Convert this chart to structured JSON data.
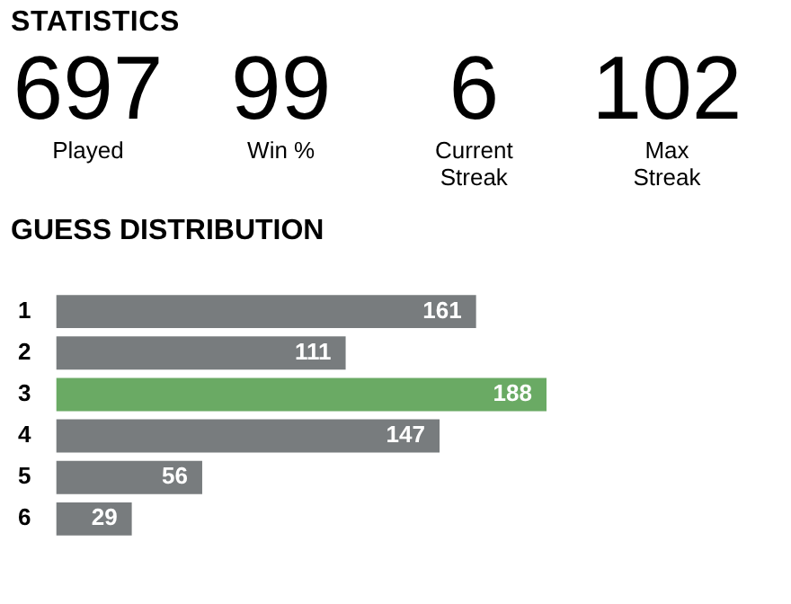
{
  "chart_data": [
    {
      "type": "other",
      "title": "STATISTICS",
      "annotations": [
        "697",
        "Played",
        "99",
        "Win %",
        "6",
        "Current Streak",
        "102",
        "Max Streak"
      ]
    },
    {
      "type": "bar",
      "title": "GUESS DISTRIBUTION",
      "orientation": "horizontal",
      "categories": [
        "1",
        "2",
        "3",
        "4",
        "5",
        "6"
      ],
      "values": [
        161,
        111,
        188,
        147,
        56,
        29
      ],
      "colors": [
        "#787c7e",
        "#787c7e",
        "#6aaa64",
        "#787c7e",
        "#787c7e",
        "#787c7e"
      ],
      "data_labels": true
    }
  ]
}
